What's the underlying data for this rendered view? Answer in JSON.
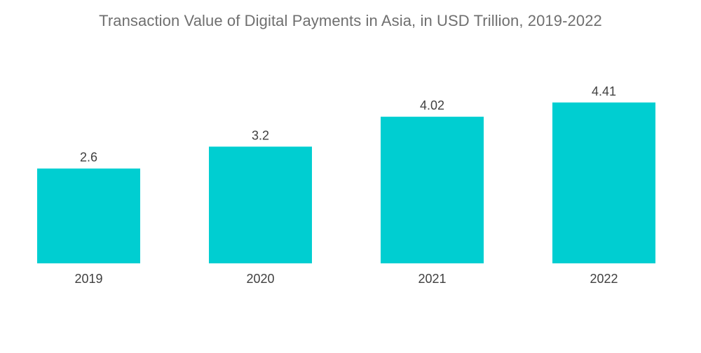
{
  "chart_data": {
    "type": "bar",
    "title": "Transaction Value of Digital Payments in Asia, in USD Trillion, 2019-2022",
    "xlabel": "",
    "ylabel": "",
    "categories": [
      "2019",
      "2020",
      "2021",
      "2022"
    ],
    "values": [
      2.6,
      3.2,
      4.02,
      4.41
    ],
    "value_labels": [
      "2.6",
      "3.2",
      "4.02",
      "4.41"
    ],
    "ylim": [
      0,
      5.3
    ],
    "grid": false,
    "legend": "none",
    "bar_color": "#00CED1",
    "text_color": "#404040",
    "title_color": "#6f6f6f"
  }
}
